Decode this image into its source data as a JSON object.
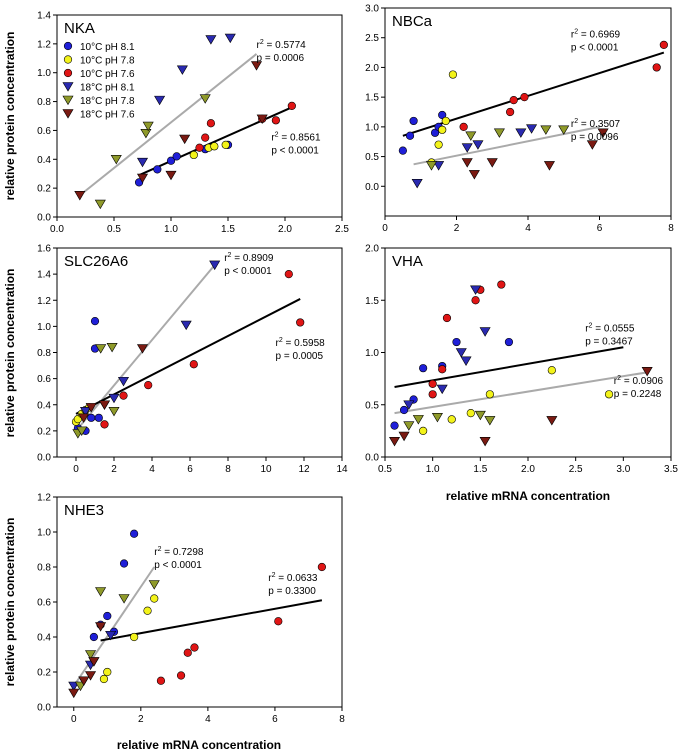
{
  "figure": {
    "ylabel": "relative protein concentration",
    "xlabel": "relative mRNA concentration"
  },
  "legend": [
    {
      "label": "10°C pH 8.1",
      "marker": "circle",
      "color": "#1f1fd8"
    },
    {
      "label": "10°C pH 7.8",
      "marker": "circle",
      "color": "#f3f31a"
    },
    {
      "label": "10°C pH 7.6",
      "marker": "circle",
      "color": "#e01515"
    },
    {
      "label": "18°C pH 8.1",
      "marker": "triangle",
      "color": "#2a2ab0"
    },
    {
      "label": "18°C pH 7.8",
      "marker": "triangle",
      "color": "#8f9a2a"
    },
    {
      "label": "18°C pH 7.6",
      "marker": "triangle",
      "color": "#7a1a12"
    }
  ],
  "chart_data": [
    {
      "type": "scatter",
      "title": "NKA",
      "xlim": [
        0,
        2.5
      ],
      "ylim": [
        0,
        1.4
      ],
      "xticks": [
        "0.0",
        "0.5",
        "1.0",
        "1.5",
        "2.0",
        "2.5"
      ],
      "yticks": [
        "0.0",
        "0.2",
        "0.4",
        "0.6",
        "0.8",
        "1.0",
        "1.2",
        "1.4"
      ],
      "series": [
        {
          "name": "10°C pH 8.1",
          "points": [
            [
              0.72,
              0.24
            ],
            [
              0.88,
              0.33
            ],
            [
              1.0,
              0.39
            ],
            [
              1.05,
              0.42
            ],
            [
              1.3,
              0.47
            ],
            [
              1.5,
              0.5
            ]
          ]
        },
        {
          "name": "10°C pH 7.8",
          "points": [
            [
              1.2,
              0.43
            ],
            [
              1.33,
              0.48
            ],
            [
              1.38,
              0.49
            ],
            [
              1.48,
              0.5
            ]
          ]
        },
        {
          "name": "10°C pH 7.6",
          "points": [
            [
              1.25,
              0.48
            ],
            [
              1.3,
              0.55
            ],
            [
              1.35,
              0.65
            ],
            [
              1.8,
              0.68
            ],
            [
              1.92,
              0.67
            ],
            [
              2.06,
              0.77
            ]
          ]
        },
        {
          "name": "18°C pH 8.1",
          "points": [
            [
              0.75,
              0.38
            ],
            [
              0.9,
              0.81
            ],
            [
              1.1,
              1.02
            ],
            [
              1.35,
              1.23
            ],
            [
              1.52,
              1.24
            ]
          ]
        },
        {
          "name": "18°C pH 7.8",
          "points": [
            [
              0.38,
              0.09
            ],
            [
              0.52,
              0.4
            ],
            [
              0.78,
              0.58
            ],
            [
              0.8,
              0.63
            ],
            [
              1.3,
              0.82
            ]
          ]
        },
        {
          "name": "18°C pH 7.6",
          "points": [
            [
              0.2,
              0.15
            ],
            [
              0.75,
              0.27
            ],
            [
              1.0,
              0.29
            ],
            [
              1.12,
              0.54
            ],
            [
              1.75,
              1.05
            ],
            [
              1.8,
              0.68
            ]
          ]
        }
      ],
      "fits": [
        {
          "color": "#aaaaaa",
          "from": [
            0.2,
            0.15
          ],
          "to": [
            1.75,
            1.13
          ],
          "r2": "0.5774",
          "p": "p = 0.0006",
          "label_at": [
            1.75,
            1.17
          ]
        },
        {
          "color": "#000000",
          "from": [
            0.72,
            0.29
          ],
          "to": [
            2.06,
            0.76
          ],
          "r2": "0.8561",
          "p": "p < 0.0001",
          "label_at": [
            1.88,
            0.53
          ]
        }
      ]
    },
    {
      "type": "scatter",
      "title": "NBCa",
      "xlim": [
        0,
        8
      ],
      "ylim": [
        -0.5,
        3.0
      ],
      "xticks": [
        "0",
        "2",
        "4",
        "6",
        "8"
      ],
      "yticks": [
        "0.0",
        "0.5",
        "1.0",
        "1.5",
        "2.0",
        "2.5",
        "3.0"
      ],
      "series": [
        {
          "name": "10°C pH 8.1",
          "points": [
            [
              0.5,
              0.6
            ],
            [
              0.7,
              0.85
            ],
            [
              0.8,
              1.1
            ],
            [
              1.4,
              0.9
            ],
            [
              1.5,
              1.0
            ],
            [
              1.6,
              1.2
            ]
          ]
        },
        {
          "name": "10°C pH 7.8",
          "points": [
            [
              1.3,
              0.4
            ],
            [
              1.5,
              0.7
            ],
            [
              1.6,
              0.95
            ],
            [
              1.7,
              1.1
            ],
            [
              1.9,
              1.88
            ]
          ]
        },
        {
          "name": "10°C pH 7.6",
          "points": [
            [
              2.2,
              1.0
            ],
            [
              3.5,
              1.25
            ],
            [
              3.6,
              1.45
            ],
            [
              3.9,
              1.5
            ],
            [
              7.6,
              2.0
            ],
            [
              7.8,
              2.38
            ]
          ]
        },
        {
          "name": "18°C pH 8.1",
          "points": [
            [
              0.9,
              0.05
            ],
            [
              1.5,
              0.35
            ],
            [
              2.3,
              0.65
            ],
            [
              2.6,
              0.7
            ],
            [
              3.8,
              0.9
            ],
            [
              4.1,
              0.97
            ]
          ]
        },
        {
          "name": "18°C pH 7.8",
          "points": [
            [
              1.3,
              0.35
            ],
            [
              2.4,
              0.85
            ],
            [
              3.2,
              0.9
            ],
            [
              4.5,
              0.95
            ],
            [
              5.0,
              0.95
            ]
          ]
        },
        {
          "name": "18°C pH 7.6",
          "points": [
            [
              2.3,
              0.4
            ],
            [
              2.5,
              0.2
            ],
            [
              3.0,
              0.4
            ],
            [
              4.6,
              0.35
            ],
            [
              5.8,
              0.7
            ],
            [
              6.1,
              0.9
            ]
          ]
        }
      ],
      "fits": [
        {
          "color": "#000000",
          "from": [
            0.5,
            0.85
          ],
          "to": [
            7.8,
            2.25
          ],
          "r2": "0.6969",
          "p": "p < 0.0001",
          "label_at": [
            5.2,
            2.5
          ]
        },
        {
          "color": "#aaaaaa",
          "from": [
            0.8,
            0.37
          ],
          "to": [
            6.0,
            1.0
          ],
          "r2": "0.3507",
          "p": "p = 0.0096",
          "label_at": [
            5.2,
            1.0
          ]
        }
      ]
    },
    {
      "type": "scatter",
      "title": "SLC26A6",
      "xlim": [
        -1,
        14
      ],
      "ylim": [
        0,
        1.6
      ],
      "xticks": [
        "0",
        "2",
        "4",
        "6",
        "8",
        "10",
        "12",
        "14"
      ],
      "yticks": [
        "0.0",
        "0.2",
        "0.4",
        "0.6",
        "0.8",
        "1.0",
        "1.2",
        "1.4",
        "1.6"
      ],
      "series": [
        {
          "name": "10°C pH 8.1",
          "points": [
            [
              0.1,
              0.22
            ],
            [
              0.5,
              0.2
            ],
            [
              0.8,
              0.3
            ],
            [
              1.0,
              1.04
            ],
            [
              1.0,
              0.83
            ],
            [
              1.2,
              0.3
            ]
          ]
        },
        {
          "name": "10°C pH 7.8",
          "points": [
            [
              0.0,
              0.27
            ],
            [
              0.1,
              0.29
            ],
            [
              0.3,
              0.33
            ],
            [
              0.5,
              0.36
            ],
            [
              0.7,
              0.38
            ]
          ]
        },
        {
          "name": "10°C pH 7.6",
          "points": [
            [
              1.5,
              0.25
            ],
            [
              2.5,
              0.47
            ],
            [
              3.8,
              0.55
            ],
            [
              6.2,
              0.71
            ],
            [
              11.2,
              1.4
            ],
            [
              11.8,
              1.03
            ]
          ]
        },
        {
          "name": "18°C pH 8.1",
          "points": [
            [
              0.5,
              0.35
            ],
            [
              1.5,
              0.4
            ],
            [
              2.0,
              0.45
            ],
            [
              2.5,
              0.58
            ],
            [
              5.8,
              1.01
            ],
            [
              7.3,
              1.47
            ]
          ]
        },
        {
          "name": "18°C pH 7.8",
          "points": [
            [
              0.1,
              0.18
            ],
            [
              0.3,
              0.2
            ],
            [
              1.3,
              0.83
            ],
            [
              1.9,
              0.84
            ],
            [
              2.0,
              0.35
            ]
          ]
        },
        {
          "name": "18°C pH 7.6",
          "points": [
            [
              0.4,
              0.3
            ],
            [
              0.8,
              0.38
            ],
            [
              1.5,
              0.4
            ],
            [
              3.5,
              0.83
            ]
          ]
        }
      ],
      "fits": [
        {
          "color": "#aaaaaa",
          "from": [
            0.0,
            0.2
          ],
          "to": [
            7.3,
            1.47
          ],
          "r2": "0.8909",
          "p": "p  < 0.0001",
          "label_at": [
            7.8,
            1.5
          ]
        },
        {
          "color": "#000000",
          "from": [
            0.0,
            0.33
          ],
          "to": [
            11.8,
            1.21
          ],
          "r2": "0.5958",
          "p": "p  = 0.0005",
          "label_at": [
            10.5,
            0.85
          ]
        }
      ]
    },
    {
      "type": "scatter",
      "title": "VHA",
      "xlim": [
        0.5,
        3.5
      ],
      "ylim": [
        0,
        2.0
      ],
      "xticks": [
        "0.5",
        "1.0",
        "1.5",
        "2.0",
        "2.5",
        "3.0",
        "3.5"
      ],
      "yticks": [
        "0.0",
        "0.5",
        "1.0",
        "1.5",
        "2.0"
      ],
      "series": [
        {
          "name": "10°C pH 8.1",
          "points": [
            [
              0.6,
              0.3
            ],
            [
              0.7,
              0.45
            ],
            [
              0.8,
              0.55
            ],
            [
              0.9,
              0.85
            ],
            [
              1.1,
              0.87
            ],
            [
              1.25,
              1.1
            ],
            [
              1.8,
              1.1
            ]
          ]
        },
        {
          "name": "10°C pH 7.8",
          "points": [
            [
              0.9,
              0.25
            ],
            [
              1.2,
              0.36
            ],
            [
              1.4,
              0.42
            ],
            [
              1.6,
              0.6
            ],
            [
              2.25,
              0.83
            ],
            [
              2.85,
              0.6
            ]
          ]
        },
        {
          "name": "10°C pH 7.6",
          "points": [
            [
              1.0,
              0.6
            ],
            [
              1.0,
              0.7
            ],
            [
              1.1,
              0.84
            ],
            [
              1.15,
              1.33
            ],
            [
              1.45,
              1.5
            ],
            [
              1.5,
              1.6
            ],
            [
              1.72,
              1.65
            ]
          ]
        },
        {
          "name": "18°C pH 8.1",
          "points": [
            [
              0.75,
              0.5
            ],
            [
              1.1,
              0.65
            ],
            [
              1.3,
              1.0
            ],
            [
              1.35,
              0.92
            ],
            [
              1.45,
              1.6
            ],
            [
              1.55,
              1.2
            ]
          ]
        },
        {
          "name": "18°C pH 7.8",
          "points": [
            [
              0.75,
              0.3
            ],
            [
              0.85,
              0.36
            ],
            [
              1.05,
              0.38
            ],
            [
              1.5,
              0.4
            ],
            [
              1.6,
              0.35
            ]
          ]
        },
        {
          "name": "18°C pH 7.6",
          "points": [
            [
              0.6,
              0.15
            ],
            [
              0.7,
              0.2
            ],
            [
              1.55,
              0.15
            ],
            [
              2.25,
              0.35
            ],
            [
              3.25,
              0.82
            ]
          ]
        }
      ],
      "fits": [
        {
          "color": "#000000",
          "from": [
            0.6,
            0.67
          ],
          "to": [
            3.0,
            1.05
          ],
          "r2": "0.0555",
          "p": "p = 0.3467",
          "label_at": [
            2.6,
            1.2
          ]
        },
        {
          "color": "#aaaaaa",
          "from": [
            0.6,
            0.42
          ],
          "to": [
            3.25,
            0.81
          ],
          "r2": "0.0906",
          "p": "p = 0.2248",
          "label_at": [
            2.9,
            0.7
          ]
        }
      ]
    },
    {
      "type": "scatter",
      "title": "NHE3",
      "xlim": [
        -0.5,
        8
      ],
      "ylim": [
        0,
        1.2
      ],
      "xticks": [
        "0",
        "2",
        "4",
        "6",
        "8"
      ],
      "yticks": [
        "0.0",
        "0.2",
        "0.4",
        "0.6",
        "0.8",
        "1.0",
        "1.2"
      ],
      "series": [
        {
          "name": "10°C pH 8.1",
          "points": [
            [
              0.6,
              0.4
            ],
            [
              0.8,
              0.47
            ],
            [
              1.0,
              0.52
            ],
            [
              1.2,
              0.43
            ],
            [
              1.5,
              0.82
            ],
            [
              1.8,
              0.99
            ]
          ]
        },
        {
          "name": "10°C pH 7.8",
          "points": [
            [
              0.9,
              0.16
            ],
            [
              1.0,
              0.2
            ],
            [
              1.8,
              0.4
            ],
            [
              2.2,
              0.55
            ],
            [
              2.4,
              0.62
            ]
          ]
        },
        {
          "name": "10°C pH 7.6",
          "points": [
            [
              2.6,
              0.15
            ],
            [
              3.2,
              0.18
            ],
            [
              3.4,
              0.31
            ],
            [
              3.6,
              0.34
            ],
            [
              6.1,
              0.49
            ],
            [
              7.4,
              0.8
            ]
          ]
        },
        {
          "name": "18°C pH 8.1",
          "points": [
            [
              0.0,
              0.12
            ],
            [
              0.3,
              0.15
            ],
            [
              0.5,
              0.24
            ],
            [
              0.6,
              0.26
            ],
            [
              1.1,
              0.41
            ]
          ]
        },
        {
          "name": "18°C pH 7.8",
          "points": [
            [
              0.2,
              0.12
            ],
            [
              0.5,
              0.3
            ],
            [
              0.8,
              0.66
            ],
            [
              1.5,
              0.62
            ],
            [
              2.4,
              0.7
            ]
          ]
        },
        {
          "name": "18°C pH 7.6",
          "points": [
            [
              0.0,
              0.08
            ],
            [
              0.3,
              0.15
            ],
            [
              0.5,
              0.18
            ],
            [
              0.6,
              0.26
            ],
            [
              0.8,
              0.46
            ]
          ]
        }
      ],
      "fits": [
        {
          "color": "#aaaaaa",
          "from": [
            0.0,
            0.12
          ],
          "to": [
            2.4,
            0.8
          ],
          "r2": "0.7298",
          "p": "p < 0.0001",
          "label_at": [
            2.4,
            0.87
          ]
        },
        {
          "color": "#000000",
          "from": [
            0.8,
            0.38
          ],
          "to": [
            7.4,
            0.61
          ],
          "r2": "0.0633",
          "p": "p = 0.3300",
          "label_at": [
            5.8,
            0.72
          ]
        }
      ]
    }
  ]
}
